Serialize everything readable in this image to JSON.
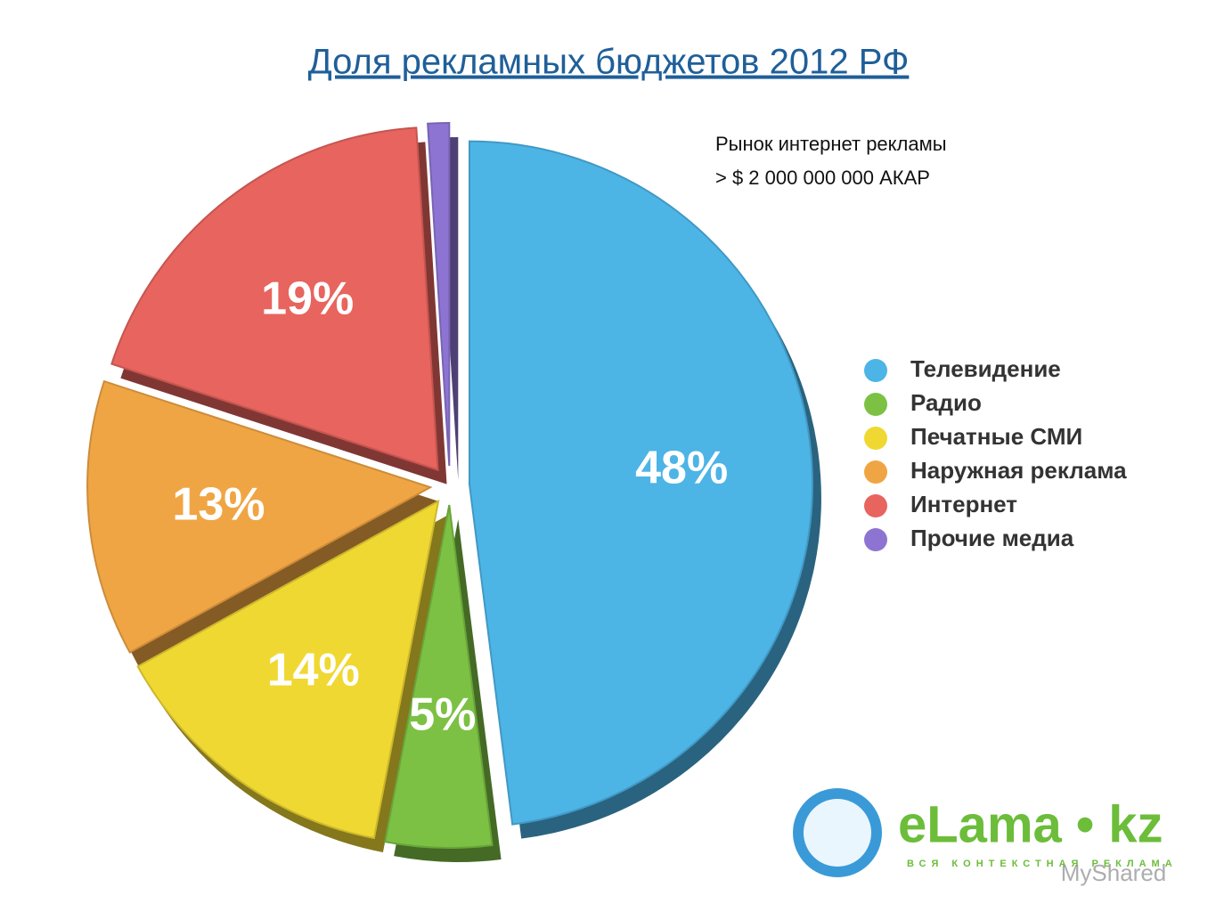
{
  "chart_data": {
    "type": "pie",
    "title": "Доля рекламных бюджетов 2012 РФ",
    "annotations": [
      "Рынок интернет рекламы",
      "> $ 2 000 000 000 АКАР"
    ],
    "categories": [
      "Телевидение",
      "Радио",
      "Печатные СМИ",
      "Наружная реклама",
      "Интернет",
      "Прочие медиа"
    ],
    "values": [
      48,
      5,
      14,
      13,
      19,
      1
    ],
    "value_labels": [
      "48%",
      "5%",
      "14%",
      "13%",
      "19%",
      null
    ],
    "colors": [
      "#4db4e6",
      "#7cc143",
      "#f0d832",
      "#f0a544",
      "#e8645e",
      "#8e74d2"
    ],
    "legend": "right"
  },
  "logo": {
    "name": "eLama • kz",
    "tagline": "ВСЯ КОНТЕКСТНАЯ РЕКЛАМА"
  },
  "watermark": "MyShared"
}
